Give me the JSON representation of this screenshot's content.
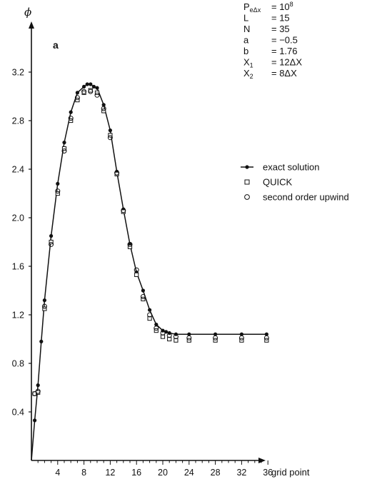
{
  "chart_data": {
    "type": "line",
    "panel_label": "a",
    "ylabel": "ϕ",
    "xlabel": "grid point",
    "xlim": [
      0,
      37
    ],
    "ylim": [
      0,
      3.6
    ],
    "x_ticks": [
      4,
      8,
      12,
      16,
      20,
      24,
      28,
      32,
      36
    ],
    "y_ticks": [
      0.4,
      0.8,
      1.2,
      1.6,
      2.0,
      2.4,
      2.8,
      3.2
    ],
    "y_tick_labels": [
      "0.4",
      "0.8",
      "1.2",
      "1.6",
      "2.0",
      "2.4",
      "2.8",
      "3.2"
    ],
    "grid": false,
    "legend_position": "right",
    "series": [
      {
        "name": "exact solution",
        "marker": "filled-circle",
        "line": true,
        "x": [
          0,
          0.5,
          1,
          1.5,
          2,
          3,
          4,
          5,
          6,
          7,
          8,
          8.5,
          9,
          9.5,
          10,
          11,
          12,
          13,
          14,
          15,
          16,
          17,
          18,
          19,
          20,
          20.5,
          21,
          22,
          24,
          28,
          32,
          35.8
        ],
        "y": [
          0,
          0.33,
          0.62,
          0.98,
          1.32,
          1.85,
          2.28,
          2.62,
          2.87,
          3.03,
          3.08,
          3.1,
          3.1,
          3.08,
          3.07,
          2.93,
          2.72,
          2.38,
          2.07,
          1.78,
          1.55,
          1.4,
          1.24,
          1.12,
          1.07,
          1.06,
          1.05,
          1.04,
          1.04,
          1.04,
          1.04,
          1.04
        ]
      },
      {
        "name": "QUICK",
        "marker": "open-square",
        "line": false,
        "x": [
          0.5,
          1,
          2,
          3,
          4,
          5,
          6,
          7,
          8,
          9,
          10,
          11,
          12,
          13,
          14,
          15,
          16,
          17,
          18,
          19,
          20,
          21,
          22,
          24,
          28,
          32,
          35.8
        ],
        "y": [
          0.55,
          0.56,
          1.25,
          1.8,
          2.2,
          2.57,
          2.8,
          2.97,
          3.03,
          3.05,
          3.03,
          2.88,
          2.68,
          2.36,
          2.05,
          1.76,
          1.53,
          1.33,
          1.17,
          1.07,
          1.02,
          1.0,
          0.99,
          0.99,
          0.99,
          0.99,
          0.99
        ]
      },
      {
        "name": "second order upwind",
        "marker": "open-circle",
        "line": false,
        "x": [
          0.5,
          1,
          2,
          3,
          4,
          5,
          6,
          7,
          8,
          9,
          10,
          11,
          12,
          13,
          14,
          15,
          16,
          17,
          18,
          19,
          20,
          21,
          22,
          24,
          28,
          32,
          35.8
        ],
        "y": [
          0.55,
          0.57,
          1.27,
          1.78,
          2.22,
          2.55,
          2.82,
          2.99,
          3.04,
          3.04,
          3.01,
          2.9,
          2.66,
          2.37,
          2.06,
          1.78,
          1.57,
          1.35,
          1.2,
          1.09,
          1.05,
          1.03,
          1.02,
          1.01,
          1.01,
          1.01,
          1.01
        ]
      }
    ],
    "parameters": [
      {
        "name": "P",
        "sub": "eΔx",
        "value": "= 10",
        "sup": "8"
      },
      {
        "name": "L",
        "sub": "",
        "value": "= 15",
        "sup": ""
      },
      {
        "name": "N",
        "sub": "",
        "value": "= 35",
        "sup": ""
      },
      {
        "name": "a",
        "sub": "",
        "value": "= −0.5",
        "sup": ""
      },
      {
        "name": "b",
        "sub": "",
        "value": "= 1.76",
        "sup": ""
      },
      {
        "name": "X",
        "sub": "1",
        "value": "= 12ΔX",
        "sup": ""
      },
      {
        "name": "X",
        "sub": "2",
        "value": "= 8ΔX",
        "sup": ""
      }
    ]
  }
}
